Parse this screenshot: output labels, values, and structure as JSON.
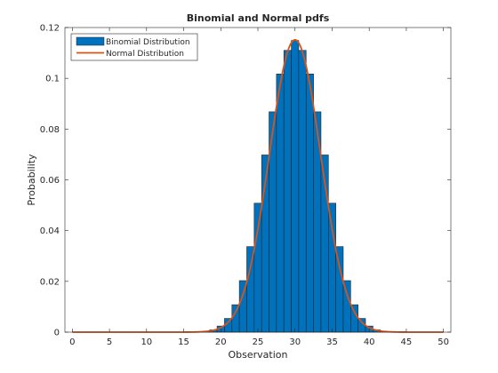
{
  "chart_data": {
    "type": "bar",
    "title": "Binomial and Normal pdfs",
    "xlabel": "Observation",
    "ylabel": "Probability",
    "xlim": [
      -1,
      51
    ],
    "ylim": [
      0,
      0.12
    ],
    "xticks": [
      0,
      5,
      10,
      15,
      20,
      25,
      30,
      35,
      40,
      45,
      50
    ],
    "xtick_labels": [
      "0",
      "5",
      "10",
      "15",
      "20",
      "25",
      "30",
      "35",
      "40",
      "45",
      "50"
    ],
    "yticks": [
      0,
      0.02,
      0.04,
      0.06,
      0.08,
      0.1,
      0.12
    ],
    "ytick_labels": [
      "0",
      "0.02",
      "0.04",
      "0.06",
      "0.08",
      "0.1",
      "0.12"
    ],
    "grid": false,
    "legend": {
      "location": "top-left",
      "entries": [
        "Binomial Distribution",
        "Normal Distribution"
      ]
    },
    "series": [
      {
        "name": "Binomial Distribution",
        "kind": "bar",
        "color": "#0072BD",
        "x": [
          18,
          19,
          20,
          21,
          22,
          23,
          24,
          25,
          26,
          27,
          28,
          29,
          30,
          31,
          32,
          33,
          34,
          35,
          36,
          37,
          38,
          39,
          40,
          41,
          42
        ],
        "values": [
          0.0003,
          0.0009,
          0.0024,
          0.0054,
          0.0108,
          0.0203,
          0.0337,
          0.0508,
          0.0698,
          0.0868,
          0.1017,
          0.111,
          0.1149,
          0.111,
          0.1017,
          0.0868,
          0.0698,
          0.0508,
          0.0337,
          0.0203,
          0.0108,
          0.0054,
          0.0024,
          0.0009,
          0.0003
        ]
      },
      {
        "name": "Normal Distribution",
        "kind": "line",
        "color": "#D95319",
        "mean": 30,
        "std": 3.4641
      }
    ]
  }
}
